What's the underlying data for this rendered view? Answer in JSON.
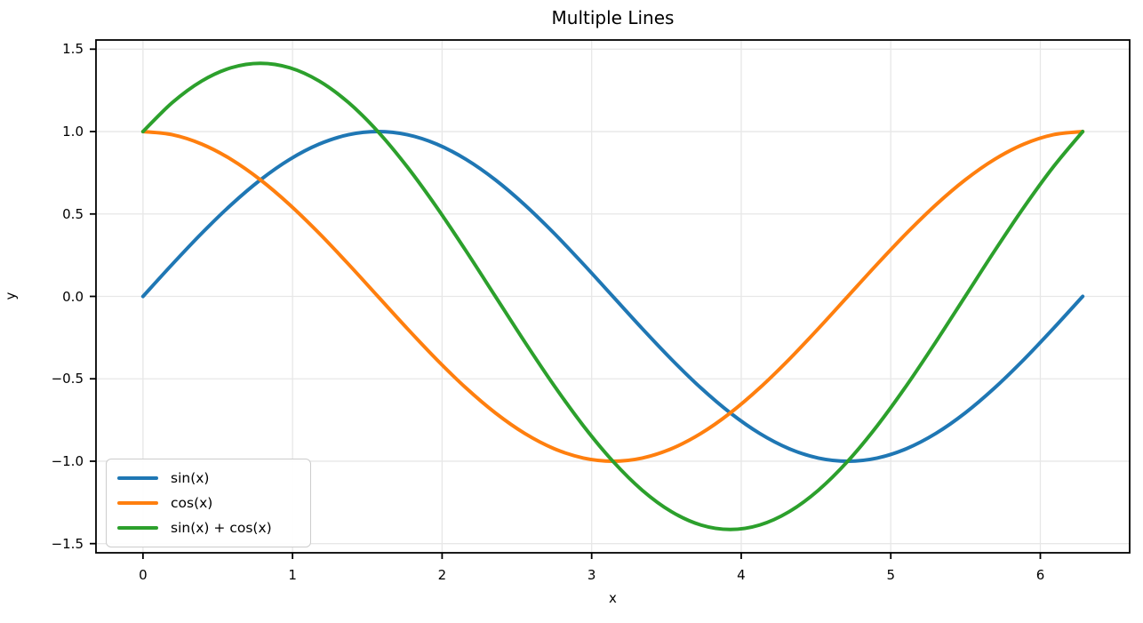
{
  "figure": {
    "background": "#ffffff"
  },
  "chart_data": {
    "type": "line",
    "title": "Multiple Lines",
    "xlabel": "x",
    "ylabel": "y",
    "xlim": [
      -0.3142,
      6.5973
    ],
    "ylim": [
      -1.5556,
      1.5556
    ],
    "grid": true,
    "legend_position": "lower left",
    "styles": {
      "grid_color": "#e7e7e7",
      "spine_color": "#000000",
      "tick_color": "#000000",
      "line_width": 4
    },
    "x_ticks": [
      {
        "v": 0,
        "label": "0"
      },
      {
        "v": 1,
        "label": "1"
      },
      {
        "v": 2,
        "label": "2"
      },
      {
        "v": 3,
        "label": "3"
      },
      {
        "v": 4,
        "label": "4"
      },
      {
        "v": 5,
        "label": "5"
      },
      {
        "v": 6,
        "label": "6"
      }
    ],
    "y_ticks": [
      {
        "v": 1.5,
        "label": "1.5"
      },
      {
        "v": 1.0,
        "label": "1.0"
      },
      {
        "v": 0.5,
        "label": "0.5"
      },
      {
        "v": 0.0,
        "label": "0.0"
      },
      {
        "v": -0.5,
        "label": "−0.5"
      },
      {
        "v": -1.0,
        "label": "−1.0"
      },
      {
        "v": -1.5,
        "label": "−1.5"
      }
    ],
    "x": [
      0,
      0.1963,
      0.3927,
      0.589,
      0.7854,
      0.9817,
      1.1781,
      1.3744,
      1.5708,
      1.7671,
      1.9635,
      2.1598,
      2.3562,
      2.5525,
      2.7489,
      2.9452,
      3.1416,
      3.3379,
      3.5343,
      3.7306,
      3.927,
      4.1233,
      4.3197,
      4.516,
      4.7124,
      4.9087,
      5.1051,
      5.3014,
      5.4978,
      5.6941,
      5.8905,
      6.0868,
      6.2832
    ],
    "series": [
      {
        "name": "sin(x)",
        "color": "#1f77b4",
        "values": [
          0,
          0.1951,
          0.3827,
          0.5556,
          0.7071,
          0.8315,
          0.9239,
          0.9808,
          1,
          0.9808,
          0.9239,
          0.8315,
          0.7071,
          0.5556,
          0.3827,
          0.1951,
          0,
          -0.1951,
          -0.3827,
          -0.5556,
          -0.7071,
          -0.8315,
          -0.9239,
          -0.9808,
          -1,
          -0.9808,
          -0.9239,
          -0.8315,
          -0.7071,
          -0.5556,
          -0.3827,
          -0.1951,
          0
        ]
      },
      {
        "name": "cos(x)",
        "color": "#ff7f0e",
        "values": [
          1,
          0.9808,
          0.9239,
          0.8315,
          0.7071,
          0.5556,
          0.3827,
          0.1951,
          0,
          -0.1951,
          -0.3827,
          -0.5556,
          -0.7071,
          -0.8315,
          -0.9239,
          -0.9808,
          -1,
          -0.9808,
          -0.9239,
          -0.8315,
          -0.7071,
          -0.5556,
          -0.3827,
          -0.1951,
          0,
          0.1951,
          0.3827,
          0.5556,
          0.7071,
          0.8315,
          0.9239,
          0.9808,
          1
        ]
      },
      {
        "name": "sin(x) + cos(x)",
        "color": "#2ca02c",
        "values": [
          1,
          1.1759,
          1.3066,
          1.3871,
          1.4142,
          1.3871,
          1.3066,
          1.1759,
          1,
          0.7857,
          0.5412,
          0.2759,
          0,
          -0.2759,
          -0.5412,
          -0.7857,
          -1,
          -1.1759,
          -1.3066,
          -1.3871,
          -1.4142,
          -1.3871,
          -1.3066,
          -1.1759,
          -1,
          -0.7857,
          -0.5412,
          -0.2759,
          0,
          0.2759,
          0.5412,
          0.7857,
          1
        ]
      }
    ]
  }
}
